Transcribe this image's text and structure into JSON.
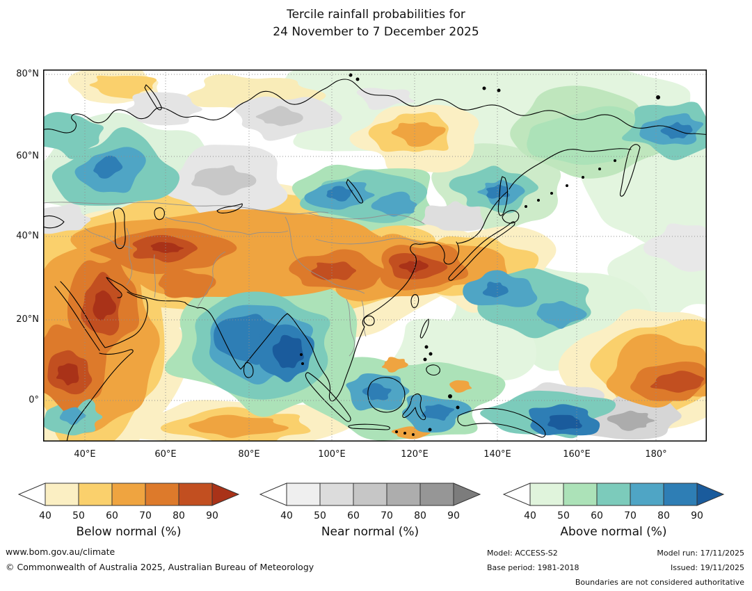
{
  "title": {
    "line1": "Tercile rainfall probabilities for",
    "line2": "24 November to 7 December 2025"
  },
  "map": {
    "lat_ticks": [
      "80°N",
      "60°N",
      "40°N",
      "20°N",
      "0°"
    ],
    "lon_ticks": [
      "40°E",
      "60°E",
      "80°E",
      "100°E",
      "120°E",
      "140°E",
      "160°E",
      "180°"
    ]
  },
  "legends": [
    {
      "id": "below-normal",
      "title": "Below normal (%)",
      "ticks": [
        "40",
        "50",
        "60",
        "70",
        "80",
        "90"
      ],
      "start_color": "#FFFFFF",
      "colors": [
        "#FBEFC3",
        "#FAD06C",
        "#EFA440",
        "#DD7A2B",
        "#C24F20"
      ],
      "arrow_color": "#A93218"
    },
    {
      "id": "near-normal",
      "title": "Near normal (%)",
      "ticks": [
        "40",
        "50",
        "60",
        "70",
        "80",
        "90"
      ],
      "start_color": "#FFFFFF",
      "colors": [
        "#EFEFEF",
        "#DCDCDC",
        "#C6C6C6",
        "#ADADAD",
        "#969696"
      ],
      "arrow_color": "#7C7C7C"
    },
    {
      "id": "above-normal",
      "title": "Above normal (%)",
      "ticks": [
        "40",
        "50",
        "60",
        "70",
        "80",
        "90"
      ],
      "start_color": "#FFFFFF",
      "colors": [
        "#E0F4DC",
        "#ACE2B8",
        "#7CCBBB",
        "#4FA5C5",
        "#2E7EB5"
      ],
      "arrow_color": "#1A5B9C"
    }
  ],
  "footer": {
    "website": "www.bom.gov.au/climate",
    "copyright": "© Commonwealth of Australia 2025, Australian Bureau of Meteorology",
    "model": "Model: ACCESS-S2",
    "model_run": "Model run: 17/11/2025",
    "base_period": "Base period: 1981-2018",
    "issued": "Issued: 19/11/2025",
    "disclaimer": "Boundaries are not considered authoritative"
  },
  "chart_data": {
    "type": "heatmap",
    "title": "Tercile rainfall probabilities for 24 November to 7 December 2025",
    "x_tick_labels": [
      "40°E",
      "60°E",
      "80°E",
      "100°E",
      "120°E",
      "140°E",
      "160°E",
      "180°"
    ],
    "y_tick_labels": [
      "80°N",
      "60°N",
      "40°N",
      "20°N",
      "0°"
    ],
    "categories": [
      "Below normal (%)",
      "Near normal (%)",
      "Above normal (%)"
    ],
    "probability_scale": [
      40,
      50,
      60,
      70,
      80,
      90
    ],
    "legend_position": "bottom",
    "grid": "dotted"
  }
}
